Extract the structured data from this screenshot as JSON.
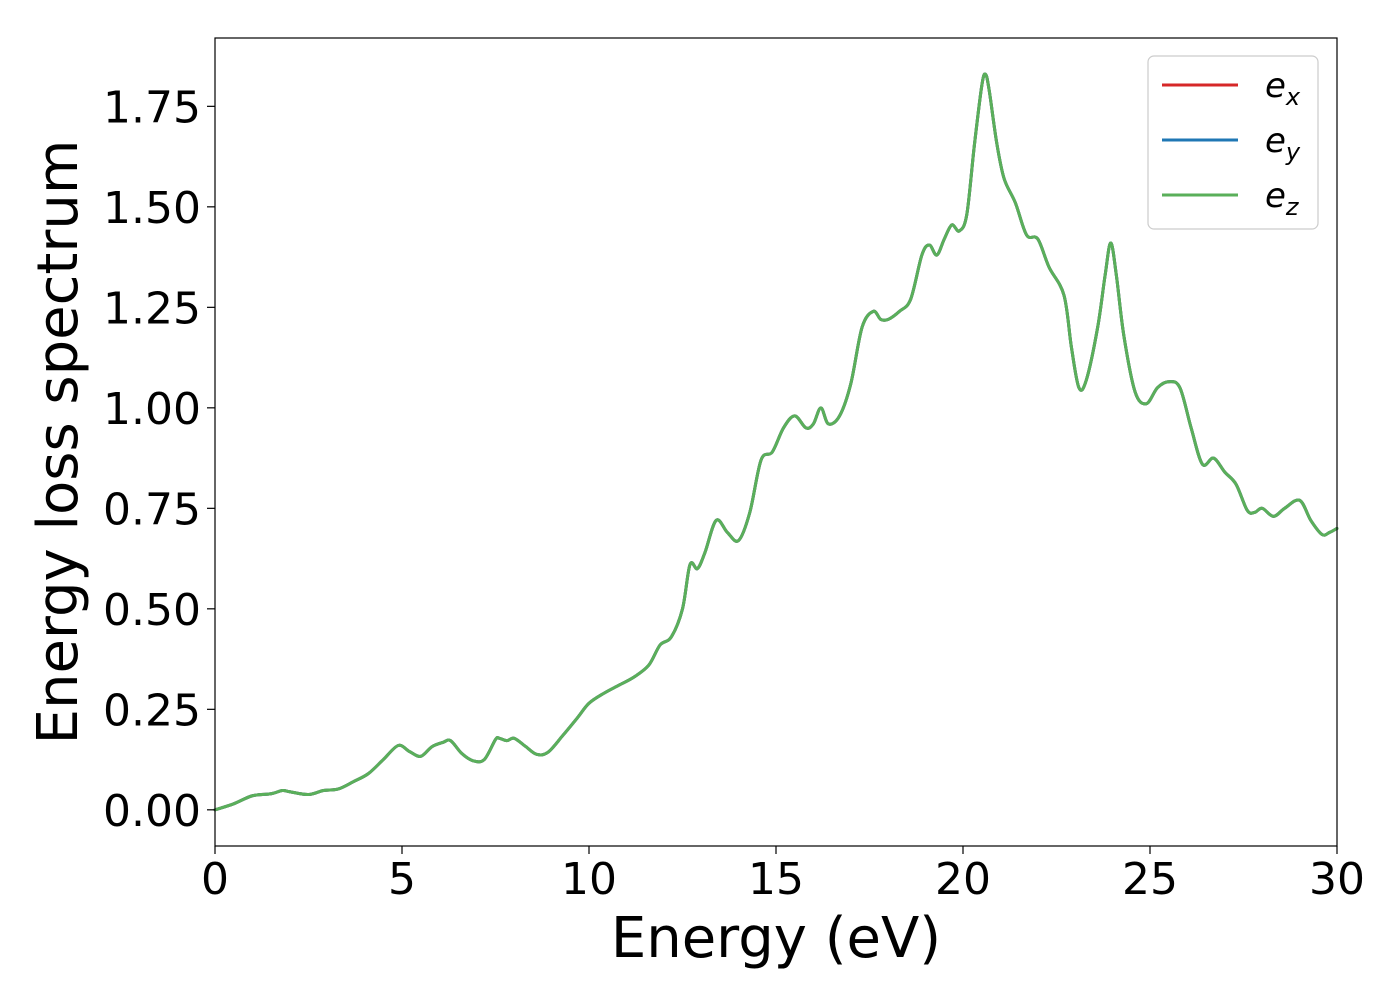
{
  "chart_data": {
    "type": "line",
    "title": "",
    "xlabel": "Energy (eV)",
    "ylabel": "Energy loss spectrum",
    "xlim": [
      0,
      30
    ],
    "ylim": [
      -0.09,
      1.92
    ],
    "xticks": [
      0,
      5,
      10,
      15,
      20,
      25,
      30
    ],
    "xtick_labels": [
      "0",
      "5",
      "10",
      "15",
      "20",
      "25",
      "30"
    ],
    "yticks": [
      0.0,
      0.25,
      0.5,
      0.75,
      1.0,
      1.25,
      1.5,
      1.75
    ],
    "ytick_labels": [
      "0.00",
      "0.25",
      "0.50",
      "0.75",
      "1.00",
      "1.25",
      "1.50",
      "1.75"
    ],
    "grid": false,
    "legend_position": "top-right",
    "x": [
      0,
      0.5,
      1.0,
      1.5,
      1.8,
      2.0,
      2.5,
      2.9,
      3.3,
      3.7,
      4.1,
      4.5,
      4.9,
      5.2,
      5.5,
      5.8,
      6.1,
      6.3,
      6.6,
      6.9,
      7.2,
      7.5,
      7.6,
      7.8,
      8.0,
      8.3,
      8.6,
      8.9,
      9.3,
      9.7,
      10.0,
      10.4,
      10.8,
      11.2,
      11.6,
      11.9,
      12.2,
      12.5,
      12.7,
      12.9,
      13.1,
      13.4,
      13.7,
      14.0,
      14.3,
      14.6,
      14.9,
      15.2,
      15.5,
      15.8,
      16.0,
      16.2,
      16.4,
      16.7,
      17.0,
      17.3,
      17.6,
      17.8,
      18.0,
      18.3,
      18.6,
      18.9,
      19.1,
      19.3,
      19.5,
      19.7,
      19.9,
      20.1,
      20.3,
      20.5,
      20.6,
      20.7,
      20.9,
      21.1,
      21.4,
      21.7,
      22.0,
      22.3,
      22.7,
      22.9,
      23.1,
      23.3,
      23.6,
      23.8,
      23.95,
      24.1,
      24.3,
      24.6,
      24.9,
      25.2,
      25.5,
      25.8,
      26.1,
      26.4,
      26.7,
      27.0,
      27.3,
      27.6,
      27.8,
      28.0,
      28.3,
      28.6,
      29.0,
      29.3,
      29.6,
      29.8,
      30.0
    ],
    "series": [
      {
        "name": "e_x",
        "name_main": "e",
        "name_sub": "x",
        "color": "#d62728",
        "values": [
          0.0,
          0.015,
          0.035,
          0.04,
          0.048,
          0.045,
          0.038,
          0.048,
          0.052,
          0.07,
          0.09,
          0.125,
          0.16,
          0.145,
          0.133,
          0.157,
          0.168,
          0.172,
          0.14,
          0.122,
          0.125,
          0.175,
          0.178,
          0.172,
          0.178,
          0.158,
          0.138,
          0.143,
          0.185,
          0.23,
          0.265,
          0.29,
          0.31,
          0.33,
          0.36,
          0.41,
          0.43,
          0.5,
          0.61,
          0.6,
          0.64,
          0.72,
          0.69,
          0.67,
          0.74,
          0.87,
          0.89,
          0.95,
          0.98,
          0.95,
          0.96,
          1.0,
          0.96,
          0.98,
          1.06,
          1.2,
          1.24,
          1.22,
          1.22,
          1.24,
          1.27,
          1.38,
          1.405,
          1.38,
          1.42,
          1.455,
          1.44,
          1.48,
          1.65,
          1.8,
          1.83,
          1.79,
          1.66,
          1.57,
          1.51,
          1.43,
          1.42,
          1.35,
          1.28,
          1.15,
          1.05,
          1.07,
          1.2,
          1.33,
          1.41,
          1.33,
          1.18,
          1.04,
          1.01,
          1.05,
          1.065,
          1.05,
          0.95,
          0.86,
          0.875,
          0.84,
          0.81,
          0.745,
          0.74,
          0.75,
          0.73,
          0.75,
          0.77,
          0.72,
          0.685,
          0.69,
          0.7
        ]
      },
      {
        "name": "e_y",
        "name_main": "e",
        "name_sub": "y",
        "color": "#1f77b4",
        "values": [
          0.0,
          0.015,
          0.035,
          0.04,
          0.048,
          0.045,
          0.038,
          0.048,
          0.052,
          0.07,
          0.09,
          0.125,
          0.16,
          0.145,
          0.133,
          0.157,
          0.168,
          0.172,
          0.14,
          0.122,
          0.125,
          0.175,
          0.178,
          0.172,
          0.178,
          0.158,
          0.138,
          0.143,
          0.185,
          0.23,
          0.265,
          0.29,
          0.31,
          0.33,
          0.36,
          0.41,
          0.43,
          0.5,
          0.61,
          0.6,
          0.64,
          0.72,
          0.69,
          0.67,
          0.74,
          0.87,
          0.89,
          0.95,
          0.98,
          0.95,
          0.96,
          1.0,
          0.96,
          0.98,
          1.06,
          1.2,
          1.24,
          1.22,
          1.22,
          1.24,
          1.27,
          1.38,
          1.405,
          1.38,
          1.42,
          1.455,
          1.44,
          1.48,
          1.65,
          1.8,
          1.83,
          1.79,
          1.66,
          1.57,
          1.51,
          1.43,
          1.42,
          1.35,
          1.28,
          1.15,
          1.05,
          1.07,
          1.2,
          1.33,
          1.41,
          1.33,
          1.18,
          1.04,
          1.01,
          1.05,
          1.065,
          1.05,
          0.95,
          0.86,
          0.875,
          0.84,
          0.81,
          0.745,
          0.74,
          0.75,
          0.73,
          0.75,
          0.77,
          0.72,
          0.685,
          0.69,
          0.7
        ]
      },
      {
        "name": "e_z",
        "name_main": "e",
        "name_sub": "z",
        "color": "#5aaf5a",
        "values": [
          0.0,
          0.015,
          0.035,
          0.04,
          0.048,
          0.045,
          0.038,
          0.048,
          0.052,
          0.07,
          0.09,
          0.125,
          0.16,
          0.145,
          0.133,
          0.157,
          0.168,
          0.172,
          0.14,
          0.122,
          0.125,
          0.175,
          0.178,
          0.172,
          0.178,
          0.158,
          0.138,
          0.143,
          0.185,
          0.23,
          0.265,
          0.29,
          0.31,
          0.33,
          0.36,
          0.41,
          0.43,
          0.5,
          0.61,
          0.6,
          0.64,
          0.72,
          0.69,
          0.67,
          0.74,
          0.87,
          0.89,
          0.95,
          0.98,
          0.95,
          0.96,
          1.0,
          0.96,
          0.98,
          1.06,
          1.2,
          1.24,
          1.22,
          1.22,
          1.24,
          1.27,
          1.38,
          1.405,
          1.38,
          1.42,
          1.455,
          1.44,
          1.48,
          1.65,
          1.8,
          1.83,
          1.79,
          1.66,
          1.57,
          1.51,
          1.43,
          1.42,
          1.35,
          1.28,
          1.15,
          1.05,
          1.07,
          1.2,
          1.33,
          1.41,
          1.33,
          1.18,
          1.04,
          1.01,
          1.05,
          1.065,
          1.05,
          0.95,
          0.86,
          0.875,
          0.84,
          0.81,
          0.745,
          0.74,
          0.75,
          0.73,
          0.75,
          0.77,
          0.72,
          0.685,
          0.69,
          0.7
        ]
      }
    ]
  }
}
